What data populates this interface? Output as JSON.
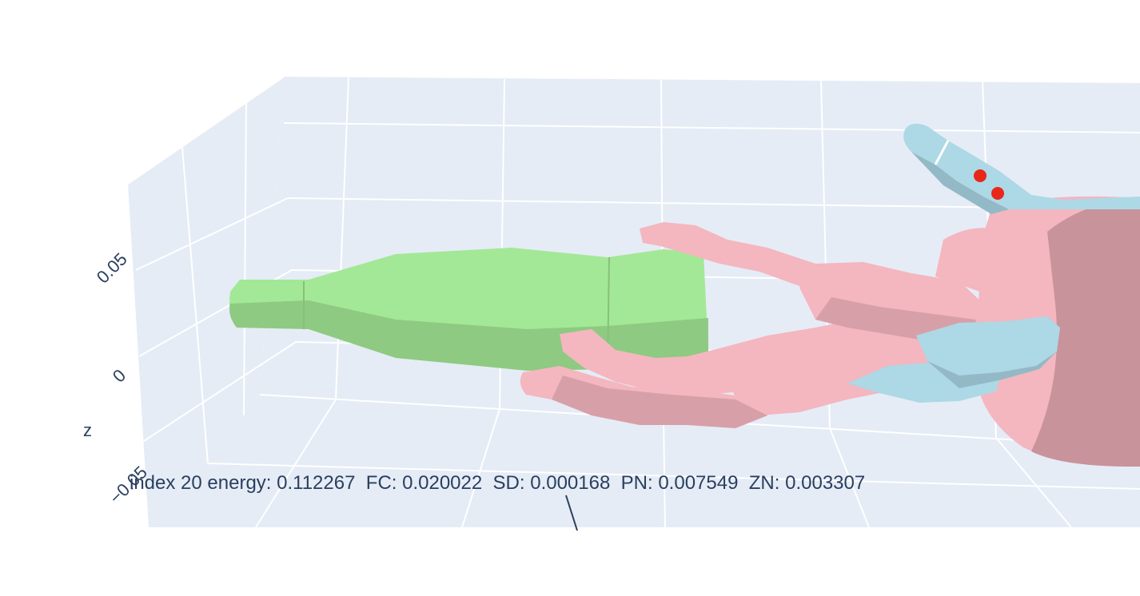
{
  "scene": {
    "annotation": "index 20 energy: 0.112267  FC: 0.020022  SD: 0.000168  PN: 0.007549  ZN: 0.003307",
    "z_axis": {
      "title": "z",
      "ticks": [
        "0.05",
        "0",
        "−0.05"
      ]
    },
    "colors": {
      "background": "#ffffff",
      "pane": "#e5ecf6",
      "grid": "#ffffff",
      "axis_text": "#2a3f5f",
      "object_mesh": "#a3e896",
      "robot_hand_mesh": "#f4b6bf",
      "reference_hand_mesh": "#add8e6",
      "contact_points": "#e8281a"
    },
    "meshes": [
      {
        "name": "object",
        "color_name": "light green"
      },
      {
        "name": "robot hand",
        "color_name": "pink"
      },
      {
        "name": "reference hand",
        "color_name": "light blue"
      }
    ]
  }
}
